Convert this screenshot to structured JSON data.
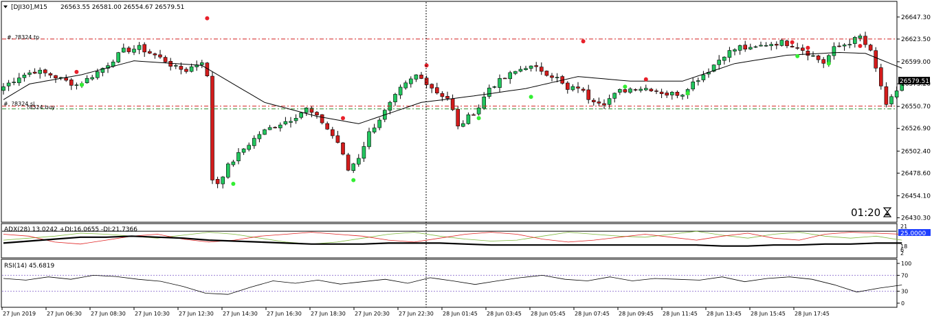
{
  "chart_data": {
    "type": "candlestick",
    "symbol_header": "[DJI30],M15",
    "ohlc_header": "26563.55 26581.00 26554.67 26579.51",
    "current_price_label": "26579.51",
    "countdown": "01:20",
    "trade_lines": {
      "tp_label": "#.   ?8324 tp",
      "tp_price": 26623.5,
      "sl_label": "#.   ?8324 sl",
      "sl_price": 26551.0,
      "buy_label": "?8324 buy",
      "buy_price": 26548.0
    },
    "price_axis": {
      "ylim": [
        26427,
        26662
      ],
      "ticks": [
        "26647.30",
        "26623.50",
        "26599.00",
        "26575.20",
        "26550.70",
        "26526.90",
        "26502.40",
        "26478.60",
        "26454.10",
        "26430.30"
      ]
    },
    "x_tick_labels": [
      "27 Jun 2019",
      "27 Jun 06:30",
      "27 Jun 08:30",
      "27 Jun 10:30",
      "27 Jun 12:30",
      "27 Jun 14:30",
      "27 Jun 16:30",
      "27 Jun 18:30",
      "27 Jun 20:30",
      "27 Jun 22:30",
      "28 Jun 01:45",
      "28 Jun 03:45",
      "28 Jun 05:45",
      "28 Jun 07:45",
      "28 Jun 09:45",
      "28 Jun 11:45",
      "28 Jun 13:45",
      "28 Jun 15:45",
      "28 Jun 17:45"
    ],
    "price_path": [
      [
        0,
        26572
      ],
      [
        3,
        26583
      ],
      [
        6,
        26589
      ],
      [
        9,
        26585
      ],
      [
        12,
        26578
      ],
      [
        14,
        26574
      ],
      [
        16,
        26580
      ],
      [
        19,
        26592
      ],
      [
        23,
        26611
      ],
      [
        26,
        26614
      ],
      [
        29,
        26606
      ],
      [
        31,
        26600
      ],
      [
        33,
        26592
      ],
      [
        35,
        26590
      ],
      [
        38,
        26600
      ],
      [
        39,
        26582
      ],
      [
        40,
        26472
      ],
      [
        41,
        26468
      ],
      [
        43,
        26486
      ],
      [
        46,
        26505
      ],
      [
        49,
        26521
      ],
      [
        52,
        26530
      ],
      [
        55,
        26537
      ],
      [
        58,
        26548
      ],
      [
        61,
        26534
      ],
      [
        63,
        26519
      ],
      [
        64,
        26512
      ],
      [
        66,
        26482
      ],
      [
        68,
        26496
      ],
      [
        70,
        26522
      ],
      [
        73,
        26545
      ],
      [
        76,
        26569
      ],
      [
        79,
        26584
      ],
      [
        81,
        26577
      ],
      [
        83,
        26566
      ],
      [
        85,
        26560
      ],
      [
        86,
        26546
      ],
      [
        87,
        26528
      ],
      [
        89,
        26539
      ],
      [
        91,
        26550
      ],
      [
        93,
        26571
      ],
      [
        97,
        26585
      ],
      [
        100,
        26594
      ],
      [
        103,
        26590
      ],
      [
        106,
        26581
      ],
      [
        108,
        26568
      ],
      [
        110,
        26572
      ],
      [
        112,
        26560
      ],
      [
        115,
        26555
      ],
      [
        118,
        26567
      ],
      [
        121,
        26571
      ],
      [
        124,
        26570
      ],
      [
        127,
        26564
      ],
      [
        130,
        26565
      ],
      [
        131,
        26572
      ],
      [
        135,
        26590
      ],
      [
        138,
        26607
      ],
      [
        141,
        26615
      ],
      [
        143,
        26612
      ],
      [
        146,
        26618
      ],
      [
        149,
        26620
      ],
      [
        152,
        26616
      ],
      [
        155,
        26605
      ],
      [
        157,
        26598
      ],
      [
        159,
        26613
      ],
      [
        162,
        26620
      ],
      [
        164,
        26626
      ],
      [
        166,
        26609
      ],
      [
        167,
        26591
      ],
      [
        168,
        26573
      ],
      [
        169,
        26550
      ],
      [
        171,
        26568
      ],
      [
        172,
        26579.51
      ]
    ],
    "ma_path": [
      [
        0,
        26558
      ],
      [
        5,
        26575
      ],
      [
        15,
        26585
      ],
      [
        25,
        26600
      ],
      [
        38,
        26595
      ],
      [
        50,
        26555
      ],
      [
        60,
        26540
      ],
      [
        68,
        26532
      ],
      [
        80,
        26555
      ],
      [
        90,
        26562
      ],
      [
        100,
        26570
      ],
      [
        110,
        26583
      ],
      [
        120,
        26578
      ],
      [
        130,
        26578
      ],
      [
        140,
        26597
      ],
      [
        150,
        26606
      ],
      [
        160,
        26609
      ],
      [
        165,
        26608
      ],
      [
        172,
        26592
      ]
    ],
    "red_markers": [
      [
        14,
        26588
      ],
      [
        39,
        26646
      ],
      [
        65,
        26538
      ],
      [
        81,
        26595
      ],
      [
        111,
        26621
      ],
      [
        123,
        26580
      ],
      [
        151,
        26620
      ],
      [
        154,
        26614
      ],
      [
        164,
        26616
      ]
    ],
    "green_markers": [
      [
        15,
        26574
      ],
      [
        44,
        26467
      ],
      [
        67,
        26471
      ],
      [
        91,
        26538
      ],
      [
        101,
        26561
      ],
      [
        119,
        26572
      ],
      [
        131,
        26565
      ],
      [
        152,
        26605
      ],
      [
        158,
        26597
      ]
    ],
    "adx_panel": {
      "label": "ADX(28) 13.0242 +DI:16.0655 -DI:21.7366",
      "level_label": "25.0000",
      "ticks": [
        "21",
        "18",
        "6",
        "2"
      ],
      "adx": [
        13,
        15,
        17,
        19,
        19,
        20,
        19,
        18,
        16,
        15,
        14,
        13,
        12,
        12,
        12,
        13,
        13,
        13,
        12,
        11,
        11,
        11,
        11,
        11,
        11,
        11,
        11,
        11,
        10,
        10,
        11,
        11,
        12,
        12,
        13,
        13
      ],
      "plus_di": [
        16,
        18,
        20,
        23,
        22,
        20,
        18,
        21,
        24,
        22,
        18,
        14,
        12,
        14,
        18,
        22,
        24,
        20,
        17,
        15,
        16,
        20,
        24,
        22,
        20,
        19,
        22,
        25,
        21,
        18,
        22,
        24,
        20,
        18,
        20,
        16
      ],
      "minus_di": [
        22,
        20,
        14,
        12,
        16,
        20,
        22,
        17,
        14,
        16,
        20,
        22,
        24,
        22,
        20,
        16,
        14,
        18,
        22,
        24,
        22,
        17,
        14,
        16,
        19,
        22,
        19,
        16,
        20,
        23,
        18,
        16,
        22,
        24,
        23,
        22
      ]
    },
    "rsi_panel": {
      "label": "RSI(14) 45.6819",
      "ticks": [
        "100",
        "70",
        "30",
        "0"
      ],
      "levels": [
        70,
        30
      ],
      "values": [
        62,
        58,
        66,
        60,
        70,
        67,
        60,
        55,
        42,
        25,
        22,
        40,
        56,
        50,
        58,
        48,
        54,
        60,
        50,
        64,
        56,
        47,
        56,
        64,
        70,
        60,
        56,
        66,
        56,
        62,
        60,
        58,
        66,
        54,
        62,
        66,
        60,
        46,
        28,
        38,
        45.68
      ]
    }
  }
}
